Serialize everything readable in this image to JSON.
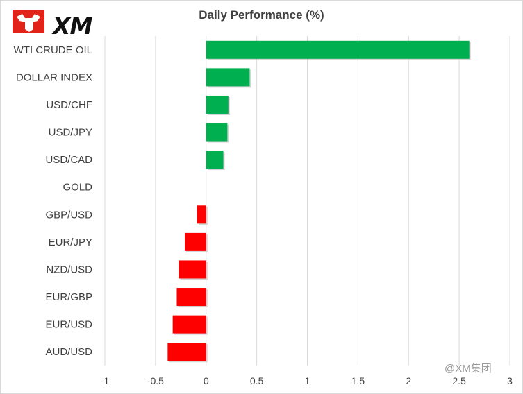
{
  "brand": {
    "logo_text": "XM",
    "watermark": "@XM集团"
  },
  "colors": {
    "positive": "#00b050",
    "negative": "#ff0000",
    "grid": "#d9d9d9",
    "text": "#404040"
  },
  "chart_data": {
    "type": "bar",
    "orientation": "horizontal",
    "title": "Daily Performance (%)",
    "categories": [
      "WTI CRUDE OIL",
      "DOLLAR INDEX",
      "USD/CHF",
      "USD/JPY",
      "USD/CAD",
      "GOLD",
      "GBP/USD",
      "EUR/JPY",
      "NZD/USD",
      "EUR/GBP",
      "EUR/USD",
      "AUD/USD"
    ],
    "values": [
      2.6,
      0.43,
      0.22,
      0.21,
      0.17,
      0,
      -0.09,
      -0.21,
      -0.27,
      -0.29,
      -0.33,
      -0.38
    ],
    "xlim": [
      -1,
      3
    ],
    "xticks": [
      "-1",
      "-0.5",
      "0",
      "0.5",
      "1",
      "1.5",
      "2",
      "2.5",
      "3"
    ],
    "grid": "vertical"
  }
}
